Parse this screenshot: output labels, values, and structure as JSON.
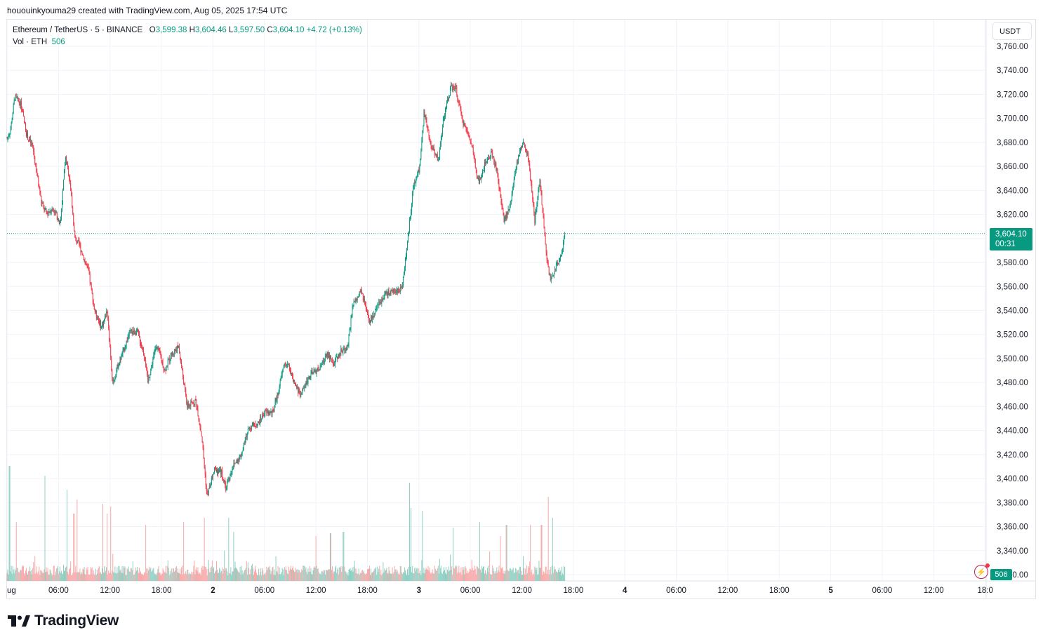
{
  "snapshot": {
    "header": "hououinkyouma29 created with TradingView.com, Aug 05, 2025 17:54 UTC"
  },
  "legend": {
    "symbol": "Ethereum / TetherUS · 5 · BINANCE",
    "open_label": "O",
    "open": "3,599.38",
    "high_label": "H",
    "high": "3,604.46",
    "low_label": "L",
    "low": "3,597.50",
    "close_label": "C",
    "close": "3,604.10",
    "change": "+4.72 (+0.13%)",
    "vol_label": "Vol · ETH",
    "vol_value": "506"
  },
  "price_scale": {
    "currency": "USDT"
  },
  "last_price": {
    "price": "3,604.10",
    "countdown": "00:31"
  },
  "volume_tag": "506",
  "brand": {
    "name": "TradingView"
  },
  "colors": {
    "up": "#089981",
    "down": "#f23645",
    "up_volume": "#8fd0c3",
    "down_volume": "#f7a9a9",
    "grid": "#f0f3fa",
    "text": "#131722"
  },
  "icons": {
    "alert": "lightning-bolt-icon",
    "logo": "tradingview-logo-icon"
  },
  "chart_data": {
    "type": "candlestick",
    "symbol": "Ethereum / TetherUS",
    "interval": "5",
    "exchange": "BINANCE",
    "y_axis": {
      "unit": "USDT",
      "ticks": [
        "3,760.00",
        "3,740.00",
        "3,720.00",
        "3,700.00",
        "3,680.00",
        "3,660.00",
        "3,640.00",
        "3,620.00",
        "3,600.00",
        "3,580.00",
        "3,560.00",
        "3,540.00",
        "3,520.00",
        "3,500.00",
        "3,480.00",
        "3,460.00",
        "3,440.00",
        "3,420.00",
        "3,400.00",
        "3,380.00",
        "3,360.00",
        "3,340.00",
        "3,320.00"
      ],
      "range": [
        3316,
        3764
      ]
    },
    "x_axis": {
      "ticks": [
        "ug",
        "06:00",
        "12:00",
        "18:00",
        "2",
        "06:00",
        "12:00",
        "18:00",
        "3",
        "06:00",
        "12:00",
        "18:00",
        "4",
        "06:00",
        "12:00",
        "18:00",
        "5",
        "06:00",
        "12:00",
        "18:0"
      ],
      "bold": [
        "2",
        "3",
        "4",
        "5"
      ]
    },
    "grid": true,
    "price_path": [
      [
        0,
        3683
      ],
      [
        0.4,
        3690
      ],
      [
        0.9,
        3718
      ],
      [
        1.6,
        3712
      ],
      [
        2.3,
        3686
      ],
      [
        3.0,
        3676
      ],
      [
        4.0,
        3630
      ],
      [
        4.6,
        3621
      ],
      [
        5.4,
        3625
      ],
      [
        6.2,
        3612
      ],
      [
        6.8,
        3668
      ],
      [
        7.3,
        3650
      ],
      [
        7.9,
        3600
      ],
      [
        8.4,
        3595
      ],
      [
        9.5,
        3572
      ],
      [
        10.2,
        3540
      ],
      [
        11.0,
        3526
      ],
      [
        11.7,
        3540
      ],
      [
        12.3,
        3478
      ],
      [
        12.8,
        3492
      ],
      [
        13.5,
        3505
      ],
      [
        14.3,
        3522
      ],
      [
        15.2,
        3522
      ],
      [
        16.1,
        3500
      ],
      [
        16.4,
        3480
      ],
      [
        17.4,
        3512
      ],
      [
        18.4,
        3490
      ],
      [
        19.1,
        3503
      ],
      [
        20.0,
        3510
      ],
      [
        21.0,
        3460
      ],
      [
        22.0,
        3465
      ],
      [
        22.7,
        3435
      ],
      [
        23.3,
        3385
      ],
      [
        24.2,
        3408
      ],
      [
        25.0,
        3405
      ],
      [
        25.5,
        3392
      ],
      [
        26.3,
        3410
      ],
      [
        27.3,
        3420
      ],
      [
        28.2,
        3443
      ],
      [
        29.2,
        3445
      ],
      [
        30.0,
        3455
      ],
      [
        31.0,
        3455
      ],
      [
        31.7,
        3475
      ],
      [
        32.3,
        3496
      ],
      [
        32.9,
        3493
      ],
      [
        33.4,
        3480
      ],
      [
        34.2,
        3470
      ],
      [
        35.3,
        3486
      ],
      [
        36.6,
        3493
      ],
      [
        37.3,
        3505
      ],
      [
        38.0,
        3495
      ],
      [
        38.8,
        3505
      ],
      [
        39.7,
        3510
      ],
      [
        40.3,
        3544
      ],
      [
        41.3,
        3556
      ],
      [
        42.2,
        3530
      ],
      [
        43.0,
        3540
      ],
      [
        44.0,
        3554
      ],
      [
        44.9,
        3555
      ],
      [
        46.0,
        3558
      ],
      [
        46.7,
        3598
      ],
      [
        47.3,
        3640
      ],
      [
        48.1,
        3660
      ],
      [
        48.6,
        3705
      ],
      [
        49.3,
        3680
      ],
      [
        50.3,
        3665
      ],
      [
        50.8,
        3698
      ],
      [
        51.7,
        3725
      ],
      [
        52.3,
        3725
      ],
      [
        53.0,
        3700
      ],
      [
        54.1,
        3680
      ],
      [
        55.0,
        3645
      ],
      [
        55.6,
        3660
      ],
      [
        56.5,
        3672
      ],
      [
        57.1,
        3655
      ],
      [
        57.9,
        3615
      ],
      [
        58.6,
        3625
      ],
      [
        59.3,
        3660
      ],
      [
        60.2,
        3682
      ],
      [
        60.8,
        3665
      ],
      [
        61.5,
        3615
      ],
      [
        62.1,
        3650
      ],
      [
        62.8,
        3590
      ],
      [
        63.3,
        3565
      ],
      [
        63.9,
        3575
      ],
      [
        64.7,
        3590
      ],
      [
        65.0,
        3604.1
      ]
    ],
    "last_price": 3604.1,
    "volume": {
      "last": 506,
      "spikes": [
        [
          0.3,
          0.82
        ],
        [
          1.1,
          0.42
        ],
        [
          4.4,
          0.75
        ],
        [
          7.0,
          0.65
        ],
        [
          7.8,
          0.48
        ],
        [
          8.2,
          0.58
        ],
        [
          11.2,
          0.55
        ],
        [
          11.7,
          0.48
        ],
        [
          12.1,
          0.53
        ],
        [
          16.2,
          0.4
        ],
        [
          20.6,
          0.42
        ],
        [
          23.0,
          0.45
        ],
        [
          25.8,
          0.45
        ],
        [
          26.4,
          0.35
        ],
        [
          36.0,
          0.32
        ],
        [
          37.7,
          0.34
        ],
        [
          39.2,
          0.35
        ],
        [
          46.9,
          0.7
        ],
        [
          47.1,
          0.52
        ],
        [
          48.4,
          0.5
        ],
        [
          52.0,
          0.38
        ],
        [
          55.1,
          0.42
        ],
        [
          57.5,
          0.32
        ],
        [
          58.2,
          0.4
        ],
        [
          61.0,
          0.4
        ],
        [
          62.3,
          0.4
        ],
        [
          63.1,
          0.6
        ],
        [
          63.6,
          0.45
        ]
      ]
    }
  }
}
